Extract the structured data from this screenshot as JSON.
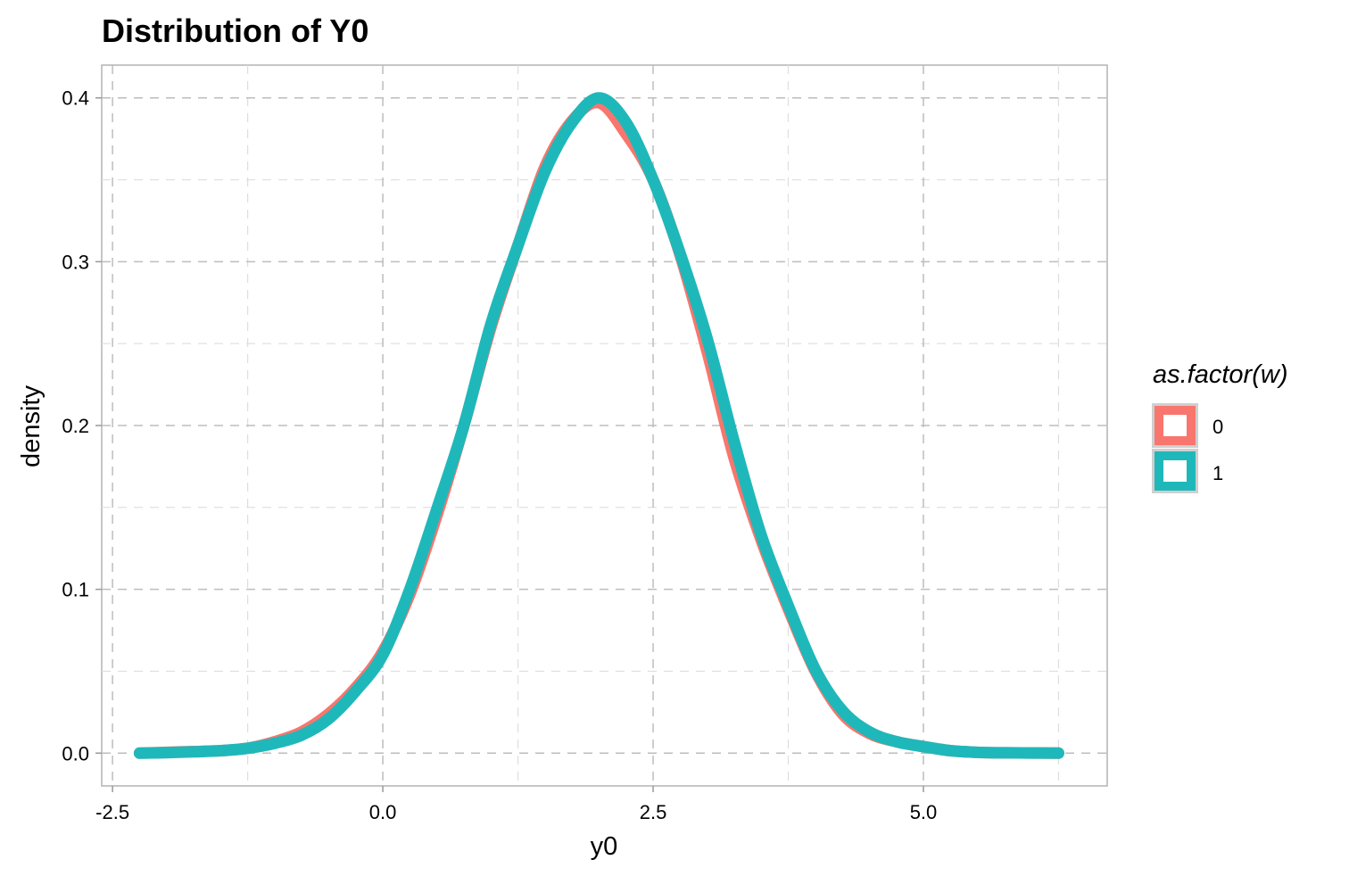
{
  "chart_data": {
    "type": "line",
    "title": "Distribution of Y0",
    "xlabel": "y0",
    "ylabel": "density",
    "xlim": [
      -2.6,
      6.7
    ],
    "ylim": [
      -0.02,
      0.42
    ],
    "x_ticks": [
      "-2.5",
      "0.0",
      "2.5",
      "5.0"
    ],
    "x_tick_values": [
      -2.5,
      0,
      2.5,
      5
    ],
    "y_ticks": [
      "0.0",
      "0.1",
      "0.2",
      "0.3",
      "0.4"
    ],
    "y_tick_values": [
      0,
      0.1,
      0.2,
      0.3,
      0.4
    ],
    "x_minor": [
      -1.25,
      1.25,
      3.75,
      6.25
    ],
    "y_minor": [
      0.05,
      0.15,
      0.25,
      0.35
    ],
    "grid": true,
    "grid_style": "dashed",
    "legend_position": "right",
    "legend": {
      "title": "as.factor(w)",
      "entries": [
        {
          "label": "0",
          "color": "#F8766D"
        },
        {
          "label": "1",
          "color": "#1FB8BA"
        }
      ]
    },
    "series": [
      {
        "name": "0",
        "color": "#F8766D",
        "x": [
          -2.25,
          -2.0,
          -1.75,
          -1.5,
          -1.25,
          -1.0,
          -0.75,
          -0.5,
          -0.25,
          0.0,
          0.25,
          0.5,
          0.75,
          1.0,
          1.25,
          1.5,
          1.75,
          2.0,
          2.25,
          2.5,
          2.75,
          3.0,
          3.25,
          3.5,
          3.75,
          4.0,
          4.25,
          4.5,
          4.75,
          5.0,
          5.25,
          5.5,
          5.75,
          6.0,
          6.25
        ],
        "values": [
          0.0,
          0.0005,
          0.001,
          0.0015,
          0.003,
          0.007,
          0.013,
          0.024,
          0.04,
          0.062,
          0.097,
          0.145,
          0.2,
          0.26,
          0.31,
          0.358,
          0.386,
          0.397,
          0.378,
          0.35,
          0.304,
          0.245,
          0.18,
          0.13,
          0.088,
          0.05,
          0.024,
          0.012,
          0.007,
          0.004,
          0.0015,
          0.0005,
          0.0002,
          0.0001,
          0.0
        ]
      },
      {
        "name": "1",
        "color": "#1FB8BA",
        "x": [
          -2.25,
          -2.0,
          -1.75,
          -1.5,
          -1.25,
          -1.0,
          -0.75,
          -0.5,
          -0.25,
          0.0,
          0.25,
          0.5,
          0.75,
          1.0,
          1.25,
          1.5,
          1.75,
          2.0,
          2.25,
          2.5,
          2.75,
          3.0,
          3.25,
          3.5,
          3.75,
          4.0,
          4.25,
          4.5,
          4.75,
          5.0,
          5.25,
          5.5,
          5.75,
          6.0,
          6.25
        ],
        "values": [
          0.0,
          0.0003,
          0.0008,
          0.0015,
          0.003,
          0.006,
          0.011,
          0.021,
          0.038,
          0.06,
          0.1,
          0.149,
          0.2,
          0.262,
          0.31,
          0.355,
          0.385,
          0.4,
          0.385,
          0.35,
          0.305,
          0.253,
          0.19,
          0.133,
          0.09,
          0.051,
          0.026,
          0.013,
          0.007,
          0.004,
          0.0015,
          0.0005,
          0.0002,
          0.0001,
          0.0
        ]
      }
    ]
  }
}
